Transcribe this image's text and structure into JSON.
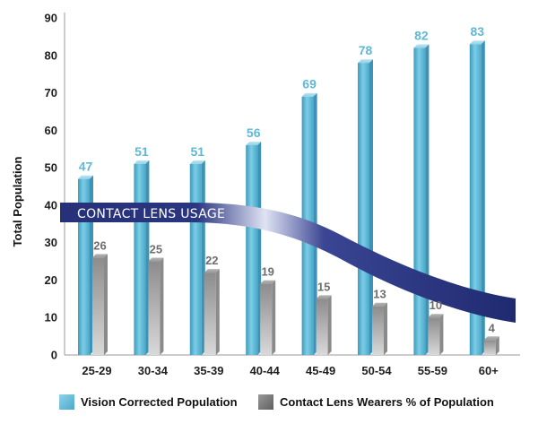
{
  "chart_data": {
    "type": "bar",
    "categories": [
      "25-29",
      "30-34",
      "35-39",
      "40-44",
      "45-49",
      "50-54",
      "55-59",
      "60+"
    ],
    "series": [
      {
        "name": "Vision Corrected Population",
        "values": [
          47,
          51,
          51,
          56,
          69,
          78,
          82,
          83
        ],
        "color": "#5fbcd8"
      },
      {
        "name": "Contact Lens Wearers % of Population",
        "values": [
          26,
          25,
          22,
          19,
          15,
          13,
          10,
          4
        ],
        "color": "#9a9a9a"
      }
    ],
    "ylabel": "Total Population",
    "ylim": [
      0,
      90
    ],
    "yticks": [
      0,
      10,
      20,
      30,
      40,
      50,
      60,
      70,
      80,
      90
    ],
    "label_color_series1": "#5fb8d6",
    "label_color_series2": "#6e6e6e",
    "band": {
      "label": "CONTACT LENS USAGE",
      "color": "#27317a",
      "highlight": "#dfe3f3"
    },
    "legend_position": "bottom"
  }
}
